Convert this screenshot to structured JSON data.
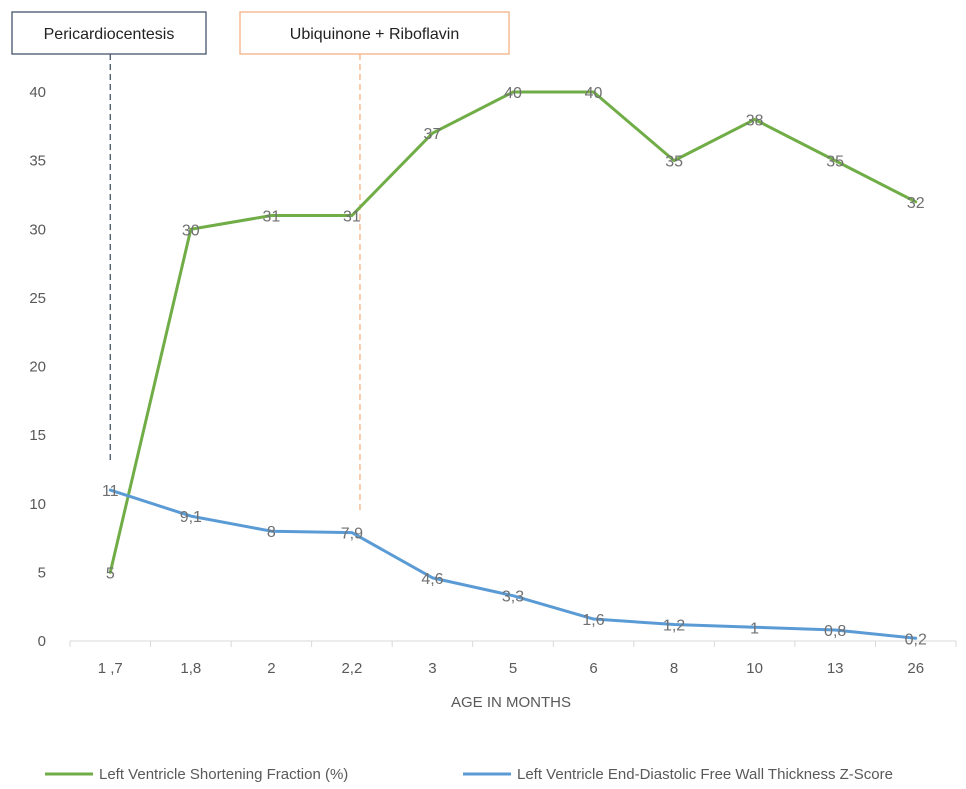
{
  "chart_data": {
    "type": "line",
    "categories": [
      "1 ,7",
      "1,8",
      "2",
      "2,2",
      "3",
      "5",
      "6",
      "8",
      "10",
      "13",
      "26"
    ],
    "series": [
      {
        "name": "Left Ventricle Shortening Fraction (%)",
        "color": "#70ad47",
        "values": [
          5,
          30,
          31,
          31,
          37,
          40,
          40,
          35,
          38,
          35,
          32
        ],
        "labels": [
          "5",
          "30",
          "31",
          "31",
          "37",
          "40",
          "40",
          "35",
          "38",
          "35",
          "32"
        ]
      },
      {
        "name": "Left Ventricle End-Diastolic Free Wall Thickness Z-Score",
        "color": "#5b9bd5",
        "values": [
          11,
          9.1,
          8,
          7.9,
          4.6,
          3.3,
          1.6,
          1.2,
          1,
          0.8,
          0.2
        ],
        "labels": [
          "11",
          "9,1",
          "8",
          "7,9",
          "4,6",
          "3,3",
          "1,6",
          "1,2",
          "1",
          "0,8",
          "0,2"
        ]
      }
    ],
    "xlabel": "AGE IN MONTHS",
    "ylabel": "",
    "ylim": [
      0,
      40
    ],
    "yticks": [
      0,
      5,
      10,
      15,
      20,
      25,
      30,
      35,
      40
    ],
    "grid": false,
    "legend": "bottom",
    "annotations": [
      {
        "text": "Pericardiocentesis",
        "category_index": 0,
        "y_from": 13,
        "color": "#44546a"
      },
      {
        "text": "Ubiquinone + Riboflavin",
        "category_index": 3.1,
        "y_from": 9.5,
        "color": "#f4b183"
      }
    ]
  }
}
